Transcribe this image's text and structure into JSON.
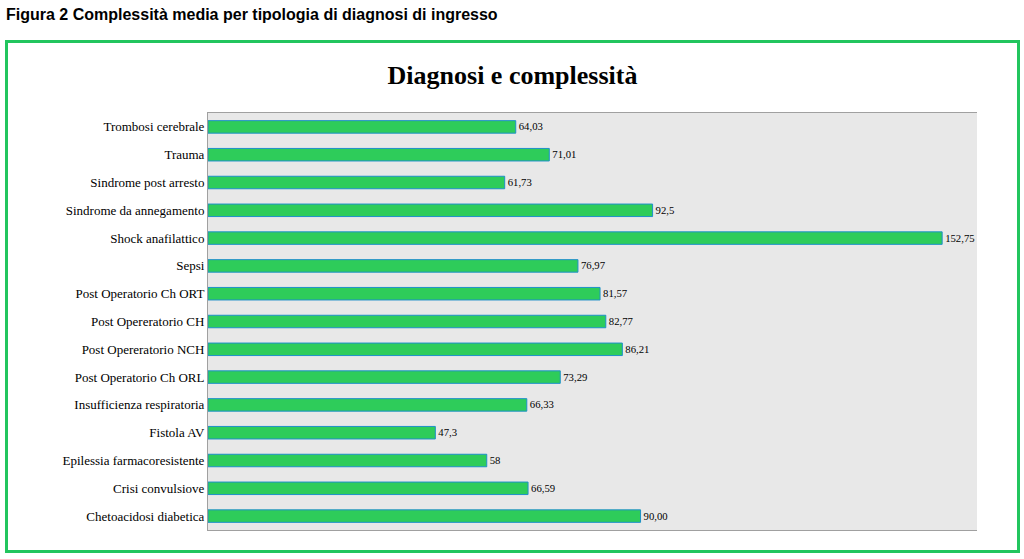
{
  "caption": "Figura 2 Complessità media per tipologia di diagnosi di ingresso",
  "chart_data": {
    "type": "bar",
    "title": "Diagnosi e complessità",
    "orientation": "horizontal",
    "categories": [
      "Trombosi cerebrale",
      "Trauma",
      "Sindrome post arresto",
      "Sindrome da annegamento",
      "Shock anafilattico",
      "Sepsi",
      "Post Operatorio Ch ORT",
      "Post Opereratorio CH",
      "Post Opereratorio NCH",
      "Post Operatorio Ch ORL",
      "Insufficienza respiratoria",
      "Fistola AV",
      "Epilessia farmacoresistente",
      "Crisi convulsiove",
      "Chetoacidosi diabetica"
    ],
    "values": [
      64.03,
      71.01,
      61.73,
      92.5,
      152.75,
      76.97,
      81.57,
      82.77,
      86.21,
      73.29,
      66.33,
      47.3,
      58,
      66.59,
      90.0
    ],
    "value_labels": [
      "64,03",
      "71,01",
      "61,73",
      "92,5",
      "152,75",
      "76,97",
      "81,57",
      "82,77",
      "86,21",
      "73,29",
      "66,33",
      "47,3",
      "58",
      "66,59",
      "90,00"
    ],
    "color": "#2ecc5a",
    "xlim": [
      0,
      160
    ],
    "xticks": [],
    "grid": false,
    "data_labels": true,
    "tick_labels": "y"
  }
}
